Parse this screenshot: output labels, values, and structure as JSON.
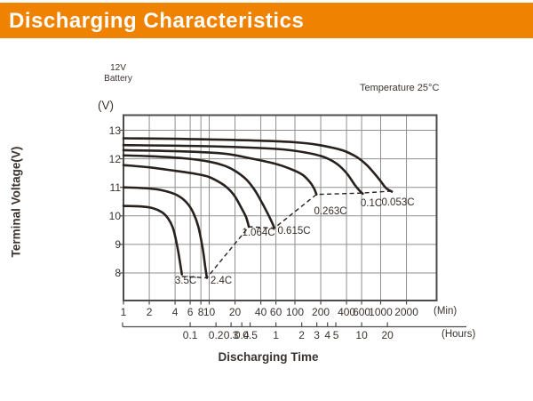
{
  "header": {
    "title": "Discharging Characteristics"
  },
  "labels": {
    "battery_line1": "12V",
    "battery_line2": "Battery",
    "temperature": "Temperature 25°C",
    "y_unit": "(V)",
    "y_axis_title": "Terminal Voltage(V)",
    "x_axis_title": "Discharging Time",
    "x_unit_min": "(Min)",
    "x_unit_hours": "(Hours)"
  },
  "colors": {
    "header_bg": "#ef8200",
    "header_text": "#ffffff",
    "curve": "#28211e",
    "grid": "#8f8f8f",
    "border": "#4c4c4c",
    "text": "#3a332f"
  },
  "chart_data": {
    "type": "line",
    "title": "Discharging Characteristics",
    "xlabel": "Discharging Time",
    "ylabel": "Terminal Voltage(V)",
    "annotation": "Temperature 25°C",
    "x_scale": "log",
    "x_unit_primary": "Min",
    "x_unit_secondary": "Hours",
    "x_range_min": [
      1,
      4400
    ],
    "ylim": [
      7.0,
      13.5
    ],
    "y_ticks": [
      8,
      9,
      10,
      11,
      12,
      13
    ],
    "x_ticks_min": [
      1,
      2,
      4,
      6,
      8,
      10,
      20,
      40,
      60,
      100,
      200,
      400,
      600,
      1000,
      2000
    ],
    "x_ticks_hours": [
      "0.1",
      "0.2",
      "0.3",
      "0.4",
      "0.5",
      "1",
      "2",
      "3",
      "4",
      "5",
      "10",
      "20"
    ],
    "grid": true,
    "series": [
      {
        "name": "3.5C",
        "points": [
          [
            1,
            10.35
          ],
          [
            1.6,
            10.33
          ],
          [
            2.2,
            10.27
          ],
          [
            2.8,
            10.13
          ],
          [
            3.3,
            9.92
          ],
          [
            3.8,
            9.55
          ],
          [
            4.2,
            9.0
          ],
          [
            4.55,
            8.4
          ],
          [
            4.8,
            7.95
          ]
        ]
      },
      {
        "name": "2.4C",
        "points": [
          [
            1,
            11.0
          ],
          [
            2,
            10.96
          ],
          [
            3,
            10.88
          ],
          [
            4.2,
            10.73
          ],
          [
            5.4,
            10.48
          ],
          [
            6.5,
            10.12
          ],
          [
            7.5,
            9.6
          ],
          [
            8.4,
            8.85
          ],
          [
            9.0,
            8.2
          ],
          [
            9.4,
            7.83
          ]
        ]
      },
      {
        "name": "1.064C",
        "points": [
          [
            1,
            11.78
          ],
          [
            2,
            11.7
          ],
          [
            4,
            11.58
          ],
          [
            7,
            11.47
          ],
          [
            10,
            11.36
          ],
          [
            14,
            11.13
          ],
          [
            17,
            10.93
          ],
          [
            20,
            10.68
          ],
          [
            24,
            10.25
          ],
          [
            27,
            9.95
          ],
          [
            29,
            9.62
          ]
        ]
      },
      {
        "name": "0.615C",
        "points": [
          [
            1,
            12.12
          ],
          [
            2,
            12.09
          ],
          [
            5,
            12.02
          ],
          [
            10,
            11.9
          ],
          [
            15,
            11.76
          ],
          [
            20,
            11.58
          ],
          [
            27,
            11.28
          ],
          [
            34,
            10.9
          ],
          [
            42,
            10.42
          ],
          [
            50,
            9.98
          ],
          [
            55,
            9.72
          ],
          [
            57.5,
            9.58
          ]
        ]
      },
      {
        "name": "0.263C",
        "points": [
          [
            1,
            12.3
          ],
          [
            5,
            12.26
          ],
          [
            15,
            12.18
          ],
          [
            30,
            12.02
          ],
          [
            50,
            11.88
          ],
          [
            70,
            11.76
          ],
          [
            100,
            11.58
          ],
          [
            125,
            11.42
          ],
          [
            150,
            11.18
          ],
          [
            168,
            10.95
          ],
          [
            178,
            10.75
          ]
        ]
      },
      {
        "name": "0.1C",
        "points": [
          [
            1,
            12.48
          ],
          [
            10,
            12.44
          ],
          [
            50,
            12.36
          ],
          [
            100,
            12.28
          ],
          [
            200,
            12.1
          ],
          [
            300,
            11.85
          ],
          [
            400,
            11.5
          ],
          [
            500,
            11.08
          ],
          [
            570,
            10.88
          ],
          [
            617,
            10.78
          ]
        ]
      },
      {
        "name": "0.053C",
        "points": [
          [
            1,
            12.72
          ],
          [
            10,
            12.68
          ],
          [
            100,
            12.58
          ],
          [
            300,
            12.36
          ],
          [
            500,
            12.1
          ],
          [
            700,
            11.76
          ],
          [
            950,
            11.3
          ],
          [
            1150,
            10.98
          ],
          [
            1350,
            10.85
          ]
        ]
      }
    ],
    "cutoff_dashed_line": [
      [
        4.8,
        7.88
      ],
      [
        9.4,
        7.83
      ],
      [
        29,
        9.62
      ],
      [
        57.5,
        9.57
      ],
      [
        178,
        10.75
      ],
      [
        617,
        10.8
      ],
      [
        1350,
        10.87
      ]
    ]
  }
}
